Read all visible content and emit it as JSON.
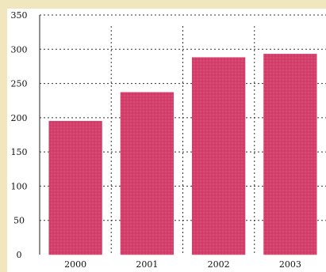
{
  "chart_data": {
    "type": "bar",
    "categories": [
      "2000",
      "2001",
      "2002",
      "2003"
    ],
    "values": [
      195,
      237,
      288,
      293
    ],
    "ylim": [
      0,
      350
    ],
    "yticks": [
      0,
      50,
      100,
      150,
      200,
      250,
      300,
      350
    ],
    "grid": true,
    "bar_color": "#d43f6b",
    "plot_background": "#ffffff",
    "frame_background": "#f1e7bf",
    "title": "",
    "xlabel": "",
    "ylabel": ""
  }
}
